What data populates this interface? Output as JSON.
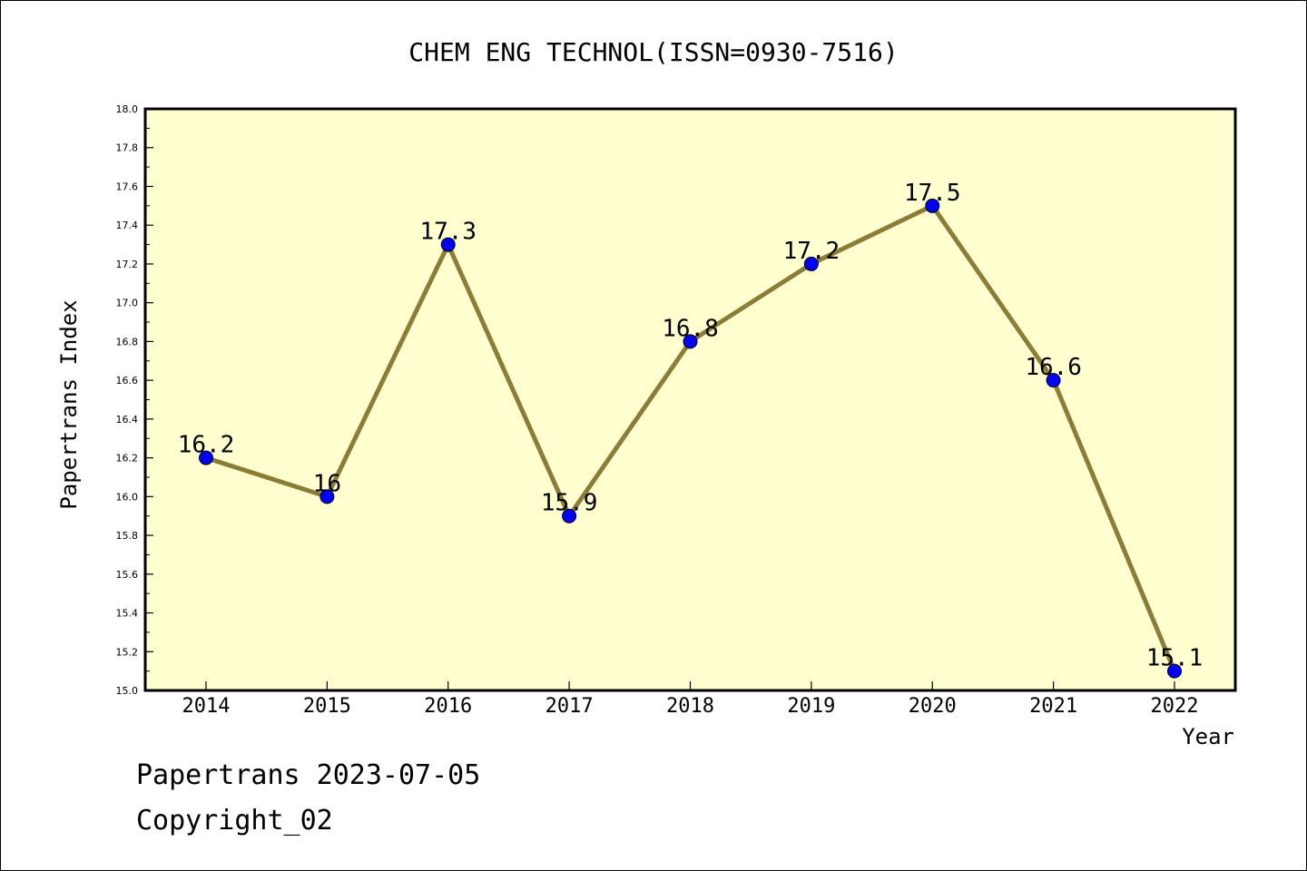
{
  "chart_data": {
    "type": "line",
    "title": "CHEM ENG TECHNOL(ISSN=0930-7516)",
    "xlabel": "Year",
    "ylabel": "Papertrans Index",
    "categories": [
      "2014",
      "2015",
      "2016",
      "2017",
      "2018",
      "2019",
      "2020",
      "2021",
      "2022"
    ],
    "series": [
      {
        "values": [
          16.2,
          16.0,
          17.3,
          15.9,
          16.8,
          17.2,
          17.5,
          16.6,
          15.1
        ],
        "data_labels": [
          "16.2",
          "16",
          "17.3",
          "15.9",
          "16.8",
          "17.2",
          "17.5",
          "16.6",
          "15.1"
        ]
      }
    ],
    "ylim": [
      15.0,
      18.0
    ],
    "y_ticks": [
      "15.0",
      "15.2",
      "15.4",
      "15.6",
      "15.8",
      "16.0",
      "16.2",
      "16.4",
      "16.6",
      "16.8",
      "17.0",
      "17.2",
      "17.4",
      "17.6",
      "17.8",
      "18.0"
    ],
    "grid": false,
    "legend": "none",
    "colors": {
      "plot_background": "#ffffd0",
      "line": "#8b7d35",
      "marker": "#0000ff"
    }
  },
  "footer": {
    "line1": "Papertrans 2023-07-05",
    "line2": "Copyright_02"
  }
}
